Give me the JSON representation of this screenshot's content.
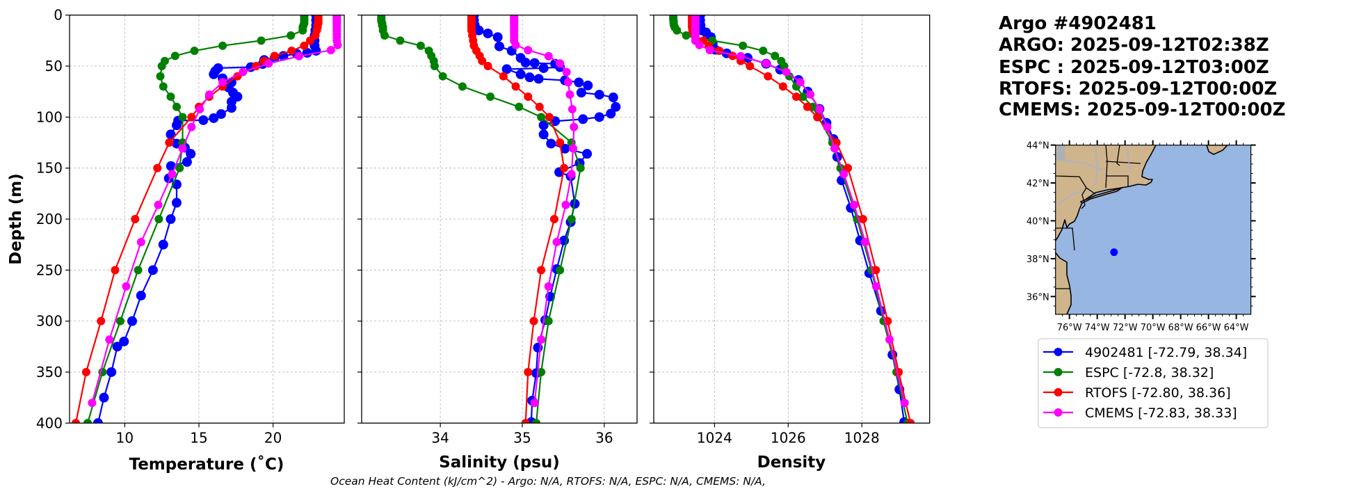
{
  "info": {
    "title_lines": [
      "Argo #4902481",
      "ARGO: 2025-09-12T02:38Z",
      "ESPC : 2025-09-12T03:00Z",
      "RTOFS: 2025-09-12T00:00Z",
      "CMEMS: 2025-09-12T00:00Z"
    ]
  },
  "footer": "Ocean Heat Content (kJ/cm^2) - Argo: N/A,  RTOFS: N/A,  ESPC: N/A,  CMEMS: N/A,",
  "legend": [
    {
      "label": "4902481 [-72.79, 38.34]",
      "color": "#0000ff"
    },
    {
      "label": "ESPC [-72.8, 38.32]",
      "color": "#008000"
    },
    {
      "label": "RTOFS [-72.80, 38.36]",
      "color": "#ff0000"
    },
    {
      "label": "CMEMS [-72.83, 38.33]",
      "color": "#ff00ff"
    }
  ],
  "map": {
    "lat_ticks": [
      "44°N",
      "42°N",
      "40°N",
      "38°N",
      "36°N"
    ],
    "lon_ticks": [
      "76°W",
      "74°W",
      "72°W",
      "70°W",
      "68°W",
      "66°W",
      "64°W"
    ],
    "lat_values": [
      44,
      42,
      40,
      38,
      36
    ],
    "lon_values": [
      -76,
      -74,
      -72,
      -70,
      -68,
      -66,
      -64
    ],
    "lon_range": [
      -77.0,
      -62.95
    ],
    "lat_range": [
      35.06,
      44.0
    ],
    "float_position": {
      "lon": -72.79,
      "lat": 38.34,
      "color": "#0000ff"
    },
    "land_color": "#cfb48c",
    "ocean_color": "#97b6e1"
  },
  "chart_data": [
    {
      "type": "line",
      "title": "",
      "xlabel": "Temperature (˚C)",
      "ylabel": "Depth (m)",
      "xlim": [
        6.28,
        24.8
      ],
      "ylim": [
        400,
        0
      ],
      "xticks": [
        10,
        15,
        20
      ],
      "yticks": [
        0,
        50,
        100,
        150,
        200,
        250,
        300,
        350,
        400
      ],
      "grid": true,
      "series": [
        {
          "name": "4902481",
          "color": "#0000ff",
          "depth": [
            0,
            5,
            10,
            15,
            20,
            25,
            30,
            35,
            37,
            38,
            40,
            42,
            44,
            48,
            51,
            52,
            55,
            58,
            62,
            66,
            71,
            76,
            80,
            85,
            91,
            97,
            101,
            103,
            103.5,
            108,
            117,
            126,
            130,
            136,
            144,
            148,
            160,
            166,
            184,
            200,
            225,
            250,
            275,
            300,
            320,
            325,
            350,
            375,
            400
          ],
          "values": [
            22.9,
            22.9,
            22.9,
            22.85,
            22.8,
            22.8,
            22.8,
            22.9,
            22.3,
            21.6,
            20.7,
            20.1,
            19.4,
            19.3,
            18.5,
            16.3,
            16.1,
            16.0,
            16.6,
            17.2,
            17.0,
            17.3,
            17.6,
            17.2,
            17.2,
            16.5,
            16.0,
            15.3,
            13.6,
            13.5,
            13.1,
            13.5,
            14.06,
            14.45,
            14.2,
            13.12,
            12.97,
            13.5,
            13.5,
            13.1,
            12.6,
            11.9,
            11.1,
            10.5,
            9.95,
            9.5,
            9.1,
            8.6,
            8.2
          ]
        },
        {
          "name": "ESPC",
          "color": "#008000",
          "depth": [
            0,
            2,
            4,
            6,
            8,
            10,
            12,
            15,
            20,
            25,
            30,
            35,
            40,
            45,
            50,
            60,
            70,
            80,
            90,
            100,
            125,
            150,
            200,
            250,
            300,
            350,
            400
          ],
          "values": [
            22.1,
            22.1,
            22.1,
            22.1,
            22.1,
            22.05,
            22.0,
            22.0,
            21.2,
            19.2,
            16.6,
            14.7,
            13.4,
            12.7,
            12.5,
            12.4,
            12.6,
            13.1,
            13.5,
            13.9,
            13.9,
            13.7,
            12.3,
            10.9,
            9.7,
            8.5,
            7.5
          ]
        },
        {
          "name": "RTOFS",
          "color": "#ff0000",
          "depth": [
            0,
            2,
            4,
            6,
            8,
            10,
            12,
            15,
            20,
            25,
            30,
            35,
            40,
            45,
            50,
            60,
            70,
            80,
            90,
            100,
            125,
            150,
            200,
            250,
            300,
            350,
            400
          ],
          "values": [
            23.05,
            23.05,
            23.05,
            23.05,
            23.05,
            23.0,
            23.0,
            22.95,
            22.85,
            22.5,
            22.1,
            21.25,
            20.1,
            19.4,
            18.86,
            17.6,
            16.6,
            15.7,
            15.0,
            14.5,
            13.0,
            12.2,
            10.7,
            9.35,
            8.4,
            7.4,
            6.7
          ]
        },
        {
          "name": "CMEMS",
          "color": "#ff00ff",
          "depth": [
            0.5,
            1.5,
            2.6,
            3.8,
            5.1,
            6.4,
            7.9,
            9.6,
            11.4,
            13.5,
            15.8,
            18.5,
            21.6,
            25.2,
            29.4,
            34.4,
            40.3,
            47.4,
            55.8,
            65.8,
            77.9,
            92.3,
            109.7,
            130.7,
            155.9,
            186.1,
            222.5,
            266.0,
            318.1,
            380.2
          ],
          "values": [
            24.3,
            24.3,
            24.3,
            24.3,
            24.3,
            24.3,
            24.3,
            24.3,
            24.3,
            24.3,
            24.3,
            24.3,
            24.3,
            24.3,
            24.35,
            23.9,
            21.75,
            19.7,
            17.97,
            16.6,
            15.7,
            15.06,
            14.5,
            13.9,
            13.2,
            12.26,
            11.1,
            10.1,
            8.97,
            7.8
          ]
        }
      ]
    },
    {
      "type": "line",
      "title": "",
      "xlabel": "Salinity (psu)",
      "ylabel": "",
      "xlim": [
        33.04,
        36.4
      ],
      "ylim": [
        400,
        0
      ],
      "xticks": [
        34,
        35,
        36
      ],
      "yticks": [
        0,
        50,
        100,
        150,
        200,
        250,
        300,
        350,
        400
      ],
      "grid": true,
      "series": [
        {
          "name": "4902481",
          "color": "#0000ff",
          "depth": [
            0,
            5,
            10,
            15,
            18,
            21.6,
            30.7,
            35,
            42,
            46.6,
            47,
            47.7,
            51,
            52,
            53,
            58,
            61,
            62.5,
            64,
            66,
            69,
            76,
            78,
            80.7,
            90,
            96.6,
            100,
            102,
            104,
            108,
            117,
            126,
            131,
            136,
            145,
            154,
            158,
            185,
            203,
            221,
            249,
            276,
            299,
            326,
            351,
            378,
            399
          ],
          "values": [
            34.41,
            34.41,
            34.42,
            34.47,
            34.58,
            34.7,
            34.72,
            34.87,
            34.98,
            35.04,
            35.15,
            35.4,
            35.46,
            35.26,
            34.81,
            34.98,
            35.09,
            35.2,
            35.52,
            35.69,
            35.8,
            35.72,
            35.94,
            36.11,
            36.14,
            36.08,
            35.94,
            35.74,
            35.4,
            35.26,
            35.26,
            35.35,
            35.52,
            35.79,
            35.7,
            35.45,
            35.59,
            35.64,
            35.59,
            35.51,
            35.42,
            35.34,
            35.28,
            35.19,
            35.17,
            35.12,
            35.11
          ]
        },
        {
          "name": "ESPC",
          "color": "#008000",
          "depth": [
            0,
            2,
            4,
            6,
            8,
            10,
            12,
            15,
            20,
            25,
            30,
            35,
            40,
            45,
            50,
            60,
            70,
            80,
            90,
            100,
            125,
            150,
            200,
            250,
            300,
            350,
            400
          ],
          "values": [
            33.28,
            33.28,
            33.28,
            33.28,
            33.29,
            33.29,
            33.3,
            33.3,
            33.32,
            33.51,
            33.76,
            33.86,
            33.89,
            33.92,
            33.93,
            34.03,
            34.27,
            34.61,
            34.96,
            35.23,
            35.6,
            35.71,
            35.6,
            35.46,
            35.32,
            35.23,
            35.17
          ]
        },
        {
          "name": "RTOFS",
          "color": "#ff0000",
          "depth": [
            0,
            2,
            4,
            6,
            8,
            10,
            12,
            15,
            20,
            25,
            30,
            35,
            40,
            45,
            50,
            60,
            70,
            80,
            90,
            100,
            125,
            150,
            200,
            250,
            300,
            350,
            400
          ],
          "values": [
            34.38,
            34.38,
            34.38,
            34.38,
            34.38,
            34.38,
            34.38,
            34.38,
            34.39,
            34.4,
            34.41,
            34.44,
            34.48,
            34.51,
            34.58,
            34.77,
            34.92,
            35.07,
            35.21,
            35.33,
            35.46,
            35.51,
            35.39,
            35.23,
            35.14,
            35.07,
            35.04
          ]
        },
        {
          "name": "CMEMS",
          "color": "#ff00ff",
          "depth": [
            0.5,
            1.5,
            2.6,
            3.8,
            5.1,
            6.4,
            7.9,
            9.6,
            11.4,
            13.5,
            15.8,
            18.5,
            21.6,
            25.2,
            29.4,
            34.4,
            40.3,
            47.4,
            55.8,
            65.8,
            77.9,
            92.3,
            109.7,
            130.7,
            155.9,
            186.1,
            222.5,
            266.0,
            318.1,
            380.2
          ],
          "values": [
            34.9,
            34.9,
            34.9,
            34.9,
            34.9,
            34.9,
            34.9,
            34.9,
            34.9,
            34.9,
            34.9,
            34.9,
            34.9,
            34.9,
            34.92,
            35.07,
            35.32,
            35.46,
            35.54,
            35.56,
            35.58,
            35.61,
            35.63,
            35.62,
            35.6,
            35.53,
            35.42,
            35.32,
            35.23,
            35.15
          ]
        }
      ]
    },
    {
      "type": "line",
      "title": "",
      "xlabel": "Density",
      "ylabel": "",
      "xlim": [
        1022.35,
        1029.84
      ],
      "ylim": [
        400,
        0
      ],
      "xticks": [
        1024,
        1026,
        1028
      ],
      "yticks": [
        0,
        50,
        100,
        150,
        200,
        250,
        300,
        350,
        400
      ],
      "grid": true,
      "series": [
        {
          "name": "4902481",
          "color": "#0000ff",
          "depth": [
            0,
            5,
            10,
            15,
            17,
            21.6,
            28,
            34,
            37.5,
            42,
            47.7,
            53.4,
            63.6,
            75,
            92,
            105.7,
            121.6,
            139,
            162,
            189,
            221,
            253,
            290,
            333,
            367,
            399
          ],
          "values": [
            1023.61,
            1023.61,
            1023.62,
            1023.65,
            1023.77,
            1023.9,
            1023.95,
            1024.02,
            1024.33,
            1024.9,
            1025.4,
            1025.78,
            1026.28,
            1026.53,
            1026.85,
            1027.04,
            1027.23,
            1027.33,
            1027.45,
            1027.7,
            1027.95,
            1028.2,
            1028.52,
            1028.83,
            1029.02,
            1029.15
          ]
        },
        {
          "name": "ESPC",
          "color": "#008000",
          "depth": [
            0,
            2,
            4,
            6,
            8,
            10,
            12,
            15,
            20,
            25,
            30,
            35,
            40,
            45,
            50,
            60,
            70,
            80,
            90,
            100,
            125,
            150,
            200,
            250,
            300,
            350,
            400
          ],
          "values": [
            1022.88,
            1022.88,
            1022.88,
            1022.89,
            1022.89,
            1022.9,
            1022.92,
            1022.98,
            1023.23,
            1023.94,
            1024.77,
            1025.32,
            1025.64,
            1025.81,
            1025.89,
            1026.03,
            1026.22,
            1026.41,
            1026.66,
            1026.82,
            1027.2,
            1027.42,
            1027.87,
            1028.26,
            1028.59,
            1028.94,
            1029.24
          ]
        },
        {
          "name": "RTOFS",
          "color": "#ff0000",
          "depth": [
            0,
            2,
            4,
            6,
            8,
            10,
            12,
            15,
            20,
            25,
            30,
            35,
            40,
            45,
            50,
            60,
            70,
            80,
            90,
            100,
            125,
            150,
            200,
            250,
            300,
            350,
            400
          ],
          "values": [
            1023.39,
            1023.39,
            1023.39,
            1023.39,
            1023.39,
            1023.39,
            1023.39,
            1023.4,
            1023.45,
            1023.7,
            1023.84,
            1024.13,
            1024.49,
            1024.71,
            1024.96,
            1025.45,
            1025.86,
            1026.22,
            1026.52,
            1026.79,
            1027.31,
            1027.62,
            1028.03,
            1028.38,
            1028.7,
            1029.0,
            1029.32
          ]
        },
        {
          "name": "CMEMS",
          "color": "#ff00ff",
          "depth": [
            0.5,
            1.5,
            2.6,
            3.8,
            5.1,
            6.4,
            7.9,
            9.6,
            11.4,
            13.5,
            15.8,
            18.5,
            21.6,
            25.2,
            29.4,
            34.4,
            40.3,
            47.4,
            55.8,
            65.8,
            77.9,
            92.3,
            109.7,
            130.7,
            155.9,
            186.1,
            222.5,
            266.0,
            318.1,
            380.2
          ],
          "values": [
            1023.48,
            1023.48,
            1023.48,
            1023.48,
            1023.48,
            1023.48,
            1023.48,
            1023.48,
            1023.48,
            1023.48,
            1023.48,
            1023.48,
            1023.48,
            1023.48,
            1023.59,
            1023.87,
            1024.71,
            1025.4,
            1025.95,
            1026.33,
            1026.6,
            1026.85,
            1027.06,
            1027.26,
            1027.51,
            1027.79,
            1028.09,
            1028.39,
            1028.75,
            1029.16
          ]
        }
      ]
    }
  ]
}
